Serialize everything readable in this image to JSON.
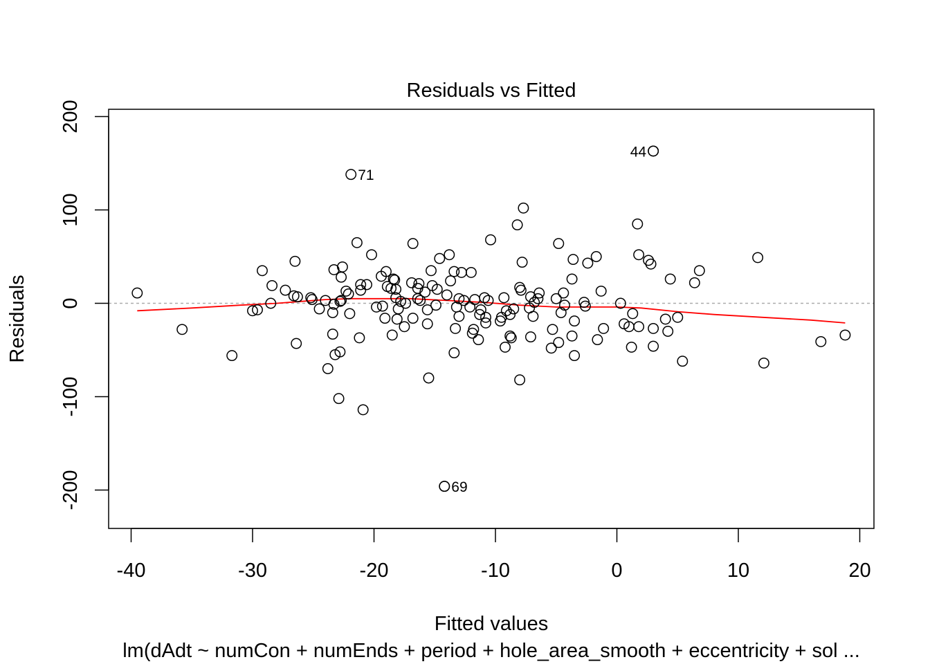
{
  "chart_data": {
    "type": "scatter",
    "title": "Residuals vs Fitted",
    "xlabel": "Fitted values",
    "ylabel": "Residuals",
    "subtitle": "lm(dAdt ~ numCon + numEnds + period + hole_area_smooth + eccentricity + sol ...",
    "xlim": [
      -42,
      21
    ],
    "ylim": [
      -240,
      210
    ],
    "xticks": [
      -40,
      -30,
      -20,
      -10,
      0,
      10,
      20
    ],
    "xtick_labels": [
      "-40",
      "-30",
      "-20",
      "-10",
      "0",
      "10",
      "20"
    ],
    "yticks": [
      -200,
      -100,
      0,
      100,
      200
    ],
    "ytick_labels": [
      "-200",
      "-100",
      "0",
      "100",
      "200"
    ],
    "reference_line_y": 0,
    "smooth_color": "#ff0000",
    "refline_color": "#aaaaaa",
    "points": [
      [
        -39.5,
        11
      ],
      [
        -35.8,
        -28
      ],
      [
        -31.7,
        -56
      ],
      [
        -30.0,
        -8
      ],
      [
        -29.6,
        -7
      ],
      [
        -29.2,
        35
      ],
      [
        -28.5,
        0
      ],
      [
        -28.4,
        19
      ],
      [
        -27.3,
        14
      ],
      [
        -26.6,
        8
      ],
      [
        -26.4,
        -43
      ],
      [
        -26.5,
        45
      ],
      [
        -26.3,
        7
      ],
      [
        -25.2,
        6
      ],
      [
        -25.1,
        4
      ],
      [
        -24.5,
        -6
      ],
      [
        -24.0,
        3
      ],
      [
        -23.8,
        -70
      ],
      [
        -23.4,
        -33
      ],
      [
        -23.4,
        -10
      ],
      [
        -23.3,
        -1
      ],
      [
        -23.3,
        36
      ],
      [
        -23.2,
        -55
      ],
      [
        -22.9,
        -102
      ],
      [
        -22.8,
        -52
      ],
      [
        -22.8,
        2
      ],
      [
        -22.7,
        3
      ],
      [
        -22.7,
        28
      ],
      [
        -22.6,
        39
      ],
      [
        -22.3,
        13
      ],
      [
        -22.1,
        10
      ],
      [
        -22.0,
        -11
      ],
      [
        -21.4,
        65
      ],
      [
        -21.2,
        -37
      ],
      [
        -21.1,
        14
      ],
      [
        -21.1,
        20
      ],
      [
        -20.9,
        -114
      ],
      [
        -20.6,
        20
      ],
      [
        -20.2,
        52
      ],
      [
        -19.8,
        -4
      ],
      [
        -19.4,
        29
      ],
      [
        -19.3,
        -3
      ],
      [
        -19.1,
        -16
      ],
      [
        -19.0,
        34
      ],
      [
        -18.9,
        18
      ],
      [
        -18.6,
        16
      ],
      [
        -18.5,
        -34
      ],
      [
        -18.4,
        26
      ],
      [
        -18.3,
        25
      ],
      [
        -18.2,
        15
      ],
      [
        -18.2,
        6
      ],
      [
        -18.1,
        -17
      ],
      [
        -18.0,
        -6
      ],
      [
        -17.8,
        2
      ],
      [
        -17.5,
        -25
      ],
      [
        -17.4,
        0
      ],
      [
        -16.9,
        22
      ],
      [
        -16.8,
        -16
      ],
      [
        -16.8,
        64
      ],
      [
        -16.4,
        16
      ],
      [
        -16.4,
        5
      ],
      [
        -16.3,
        21
      ],
      [
        -16.2,
        3
      ],
      [
        -15.8,
        12
      ],
      [
        -15.6,
        -22
      ],
      [
        -15.6,
        -7
      ],
      [
        -15.5,
        -80
      ],
      [
        -15.3,
        35
      ],
      [
        -15.2,
        19
      ],
      [
        -14.9,
        -2
      ],
      [
        -14.8,
        15
      ],
      [
        -14.6,
        48
      ],
      [
        -14.2,
        -196
      ],
      [
        -14.0,
        9
      ],
      [
        -13.8,
        52
      ],
      [
        -13.7,
        24
      ],
      [
        -13.4,
        -53
      ],
      [
        -13.4,
        34
      ],
      [
        -13.3,
        -27
      ],
      [
        -13.2,
        -4
      ],
      [
        -13.0,
        5
      ],
      [
        -13.0,
        -14
      ],
      [
        -12.8,
        33
      ],
      [
        -12.6,
        3
      ],
      [
        -12.1,
        -4
      ],
      [
        -12.0,
        33
      ],
      [
        -11.9,
        -32
      ],
      [
        -11.8,
        -28
      ],
      [
        -11.7,
        4
      ],
      [
        -11.4,
        -39
      ],
      [
        -11.3,
        -12
      ],
      [
        -11.2,
        -7
      ],
      [
        -10.9,
        6
      ],
      [
        -10.8,
        -15
      ],
      [
        -10.8,
        -21
      ],
      [
        -10.6,
        3
      ],
      [
        -10.4,
        68
      ],
      [
        -9.6,
        -19
      ],
      [
        -9.5,
        -15
      ],
      [
        -9.3,
        6
      ],
      [
        -9.2,
        -47
      ],
      [
        -9.1,
        -8
      ],
      [
        -8.8,
        -35
      ],
      [
        -8.8,
        -12
      ],
      [
        -8.7,
        -37
      ],
      [
        -8.5,
        -6
      ],
      [
        -8.2,
        84
      ],
      [
        -8.0,
        -82
      ],
      [
        -8.0,
        17
      ],
      [
        -7.9,
        14
      ],
      [
        -7.8,
        44
      ],
      [
        -7.7,
        102
      ],
      [
        -7.2,
        -5
      ],
      [
        -7.1,
        -36
      ],
      [
        -7.1,
        7
      ],
      [
        -6.9,
        -14
      ],
      [
        -6.8,
        1
      ],
      [
        -6.5,
        5
      ],
      [
        -6.4,
        11
      ],
      [
        -5.4,
        -48
      ],
      [
        -5.3,
        -28
      ],
      [
        -5.0,
        5
      ],
      [
        -4.8,
        -42
      ],
      [
        -4.8,
        64
      ],
      [
        -4.6,
        -10
      ],
      [
        -4.4,
        11
      ],
      [
        -4.3,
        -2
      ],
      [
        -3.7,
        26
      ],
      [
        -3.7,
        -35
      ],
      [
        -3.6,
        47
      ],
      [
        -3.5,
        -56
      ],
      [
        -3.5,
        -19
      ],
      [
        -2.7,
        1
      ],
      [
        -2.6,
        -3
      ],
      [
        -2.4,
        43
      ],
      [
        -1.7,
        50
      ],
      [
        -1.6,
        -39
      ],
      [
        -1.3,
        13
      ],
      [
        -1.1,
        -27
      ],
      [
        0.3,
        0
      ],
      [
        0.6,
        -22
      ],
      [
        1.0,
        -25
      ],
      [
        1.2,
        -47
      ],
      [
        1.3,
        -11
      ],
      [
        1.7,
        85
      ],
      [
        1.8,
        -25
      ],
      [
        1.8,
        52
      ],
      [
        2.6,
        46
      ],
      [
        2.8,
        42
      ],
      [
        3.0,
        -46
      ],
      [
        3.0,
        -27
      ],
      [
        3.0,
        163
      ],
      [
        4.0,
        -17
      ],
      [
        4.2,
        -30
      ],
      [
        4.4,
        26
      ],
      [
        5.0,
        -15
      ],
      [
        5.4,
        -62
      ],
      [
        6.4,
        22
      ],
      [
        6.8,
        35
      ],
      [
        11.6,
        49
      ],
      [
        12.1,
        -64
      ],
      [
        16.8,
        -41
      ],
      [
        18.8,
        -34
      ]
    ],
    "labeled_points": [
      {
        "label": "71",
        "x": -21.9,
        "y": 138,
        "side": "right"
      },
      {
        "label": "44",
        "x": 3.0,
        "y": 163,
        "side": "left"
      },
      {
        "label": "69",
        "x": -14.2,
        "y": -196,
        "side": "right"
      }
    ],
    "smooth_line": [
      [
        -39.5,
        -8
      ],
      [
        -35,
        -5
      ],
      [
        -31,
        -2
      ],
      [
        -28,
        0
      ],
      [
        -26,
        2
      ],
      [
        -24,
        4
      ],
      [
        -22,
        5
      ],
      [
        -20,
        5
      ],
      [
        -17,
        5
      ],
      [
        -14,
        3
      ],
      [
        -11,
        1
      ],
      [
        -8,
        -2
      ],
      [
        -5,
        -4
      ],
      [
        -2,
        -4
      ],
      [
        0,
        -4
      ],
      [
        2,
        -5
      ],
      [
        5,
        -9
      ],
      [
        8,
        -12
      ],
      [
        12,
        -15
      ],
      [
        16,
        -18
      ],
      [
        18.8,
        -21
      ]
    ]
  }
}
